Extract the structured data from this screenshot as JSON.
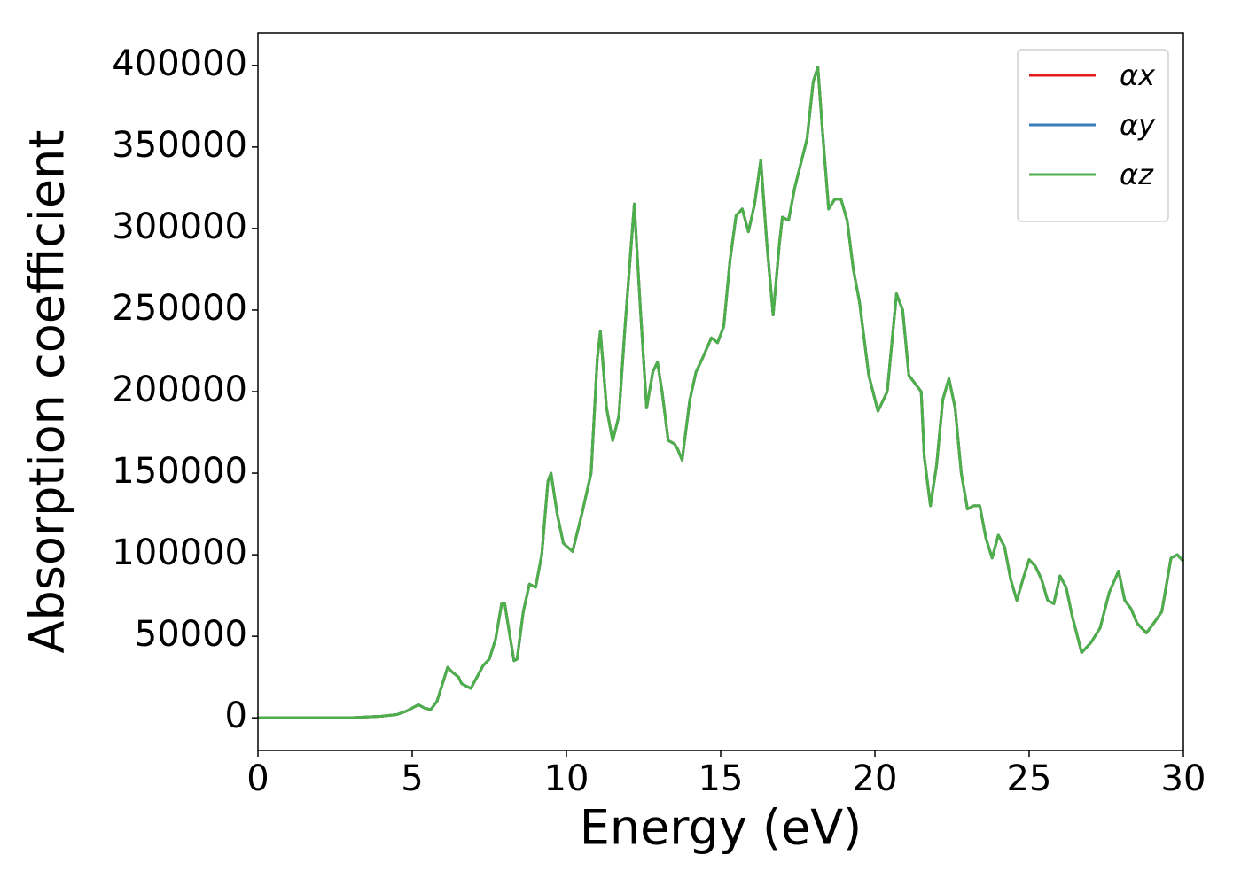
{
  "chart_data": {
    "type": "line",
    "xlabel": "Energy (eV)",
    "ylabel": "Absorption coefficient",
    "xlim": [
      0,
      30
    ],
    "ylim": [
      -20000,
      420000
    ],
    "xticks": [
      0,
      5,
      10,
      15,
      20,
      25,
      30
    ],
    "yticks": [
      0,
      50000,
      100000,
      150000,
      200000,
      250000,
      300000,
      350000,
      400000
    ],
    "legend": "upper right",
    "grid": false,
    "x": [
      0,
      1,
      2,
      3,
      4,
      4.5,
      4.8,
      5.0,
      5.2,
      5.4,
      5.6,
      5.8,
      6.0,
      6.15,
      6.3,
      6.5,
      6.6,
      6.9,
      7.1,
      7.3,
      7.5,
      7.7,
      7.9,
      8.0,
      8.1,
      8.3,
      8.4,
      8.6,
      8.8,
      9.0,
      9.2,
      9.4,
      9.5,
      9.7,
      9.9,
      10.2,
      10.5,
      10.8,
      11.0,
      11.1,
      11.3,
      11.5,
      11.7,
      11.9,
      12.2,
      12.4,
      12.6,
      12.8,
      12.95,
      13.1,
      13.3,
      13.5,
      13.6,
      13.75,
      14.0,
      14.2,
      14.4,
      14.7,
      14.9,
      15.1,
      15.3,
      15.5,
      15.7,
      15.9,
      16.1,
      16.3,
      16.5,
      16.7,
      16.9,
      17.0,
      17.2,
      17.4,
      17.6,
      17.8,
      18.0,
      18.15,
      18.3,
      18.5,
      18.7,
      18.9,
      19.1,
      19.3,
      19.5,
      19.8,
      20.1,
      20.4,
      20.7,
      20.9,
      21.1,
      21.3,
      21.5,
      21.6,
      21.8,
      22.0,
      22.2,
      22.4,
      22.6,
      22.8,
      23.0,
      23.2,
      23.4,
      23.6,
      23.8,
      24.0,
      24.2,
      24.4,
      24.6,
      24.8,
      25.0,
      25.2,
      25.4,
      25.6,
      25.8,
      26.0,
      26.2,
      26.4,
      26.7,
      27.0,
      27.3,
      27.6,
      27.9,
      28.1,
      28.3,
      28.5,
      28.8,
      29.0,
      29.3,
      29.6,
      29.8,
      30.0
    ],
    "series": [
      {
        "name": "αx",
        "color": "#e41a1c",
        "values": [
          0,
          0,
          0,
          0,
          1000,
          2000,
          4000,
          6000,
          8000,
          6000,
          5000,
          10000,
          22000,
          31000,
          28000,
          25000,
          21000,
          18000,
          25000,
          32000,
          36000,
          48000,
          70000,
          70000,
          58000,
          35000,
          36000,
          65000,
          82000,
          80000,
          100000,
          145000,
          150000,
          125000,
          107000,
          102000,
          125000,
          150000,
          220000,
          237000,
          190000,
          170000,
          185000,
          240000,
          315000,
          250000,
          190000,
          212000,
          218000,
          200000,
          170000,
          168000,
          165000,
          158000,
          195000,
          212000,
          220000,
          233000,
          230000,
          240000,
          280000,
          308000,
          312000,
          298000,
          315000,
          342000,
          290000,
          247000,
          290000,
          307000,
          305000,
          325000,
          340000,
          355000,
          390000,
          399000,
          360000,
          312000,
          318000,
          318000,
          305000,
          275000,
          255000,
          210000,
          188000,
          200000,
          260000,
          250000,
          210000,
          205000,
          200000,
          160000,
          130000,
          155000,
          195000,
          208000,
          190000,
          150000,
          128000,
          130000,
          130000,
          110000,
          98000,
          112000,
          105000,
          85000,
          72000,
          85000,
          97000,
          93000,
          85000,
          72000,
          70000,
          87000,
          80000,
          62000,
          40000,
          46000,
          55000,
          77000,
          90000,
          72000,
          67000,
          58000,
          52000,
          57000,
          65000,
          98000,
          100000,
          96000
        ]
      },
      {
        "name": "αy",
        "color": "#377eb8",
        "values": [
          0,
          0,
          0,
          0,
          1000,
          2000,
          4000,
          6000,
          8000,
          6000,
          5000,
          10000,
          22000,
          31000,
          28000,
          25000,
          21000,
          18000,
          25000,
          32000,
          36000,
          48000,
          70000,
          70000,
          58000,
          35000,
          36000,
          65000,
          82000,
          80000,
          100000,
          145000,
          150000,
          125000,
          107000,
          102000,
          125000,
          150000,
          220000,
          237000,
          190000,
          170000,
          185000,
          240000,
          315000,
          250000,
          190000,
          212000,
          218000,
          200000,
          170000,
          168000,
          165000,
          158000,
          195000,
          212000,
          220000,
          233000,
          230000,
          240000,
          280000,
          308000,
          312000,
          298000,
          315000,
          342000,
          290000,
          247000,
          290000,
          307000,
          305000,
          325000,
          340000,
          355000,
          390000,
          399000,
          360000,
          312000,
          318000,
          318000,
          305000,
          275000,
          255000,
          210000,
          188000,
          200000,
          260000,
          250000,
          210000,
          205000,
          200000,
          160000,
          130000,
          155000,
          195000,
          208000,
          190000,
          150000,
          128000,
          130000,
          130000,
          110000,
          98000,
          112000,
          105000,
          85000,
          72000,
          85000,
          97000,
          93000,
          85000,
          72000,
          70000,
          87000,
          80000,
          62000,
          40000,
          46000,
          55000,
          77000,
          90000,
          72000,
          67000,
          58000,
          52000,
          57000,
          65000,
          98000,
          100000,
          96000
        ]
      },
      {
        "name": "αz",
        "color": "#4daf4a",
        "values": [
          0,
          0,
          0,
          0,
          1000,
          2000,
          4000,
          6000,
          8000,
          6000,
          5000,
          10000,
          22000,
          31000,
          28000,
          25000,
          21000,
          18000,
          25000,
          32000,
          36000,
          48000,
          70000,
          70000,
          58000,
          35000,
          36000,
          65000,
          82000,
          80000,
          100000,
          145000,
          150000,
          125000,
          107000,
          102000,
          125000,
          150000,
          220000,
          237000,
          190000,
          170000,
          185000,
          240000,
          315000,
          250000,
          190000,
          212000,
          218000,
          200000,
          170000,
          168000,
          165000,
          158000,
          195000,
          212000,
          220000,
          233000,
          230000,
          240000,
          280000,
          308000,
          312000,
          298000,
          315000,
          342000,
          290000,
          247000,
          290000,
          307000,
          305000,
          325000,
          340000,
          355000,
          390000,
          399000,
          360000,
          312000,
          318000,
          318000,
          305000,
          275000,
          255000,
          210000,
          188000,
          200000,
          260000,
          250000,
          210000,
          205000,
          200000,
          160000,
          130000,
          155000,
          195000,
          208000,
          190000,
          150000,
          128000,
          130000,
          130000,
          110000,
          98000,
          112000,
          105000,
          85000,
          72000,
          85000,
          97000,
          93000,
          85000,
          72000,
          70000,
          87000,
          80000,
          62000,
          40000,
          46000,
          55000,
          77000,
          90000,
          72000,
          67000,
          58000,
          52000,
          57000,
          65000,
          98000,
          100000,
          96000
        ]
      }
    ]
  }
}
